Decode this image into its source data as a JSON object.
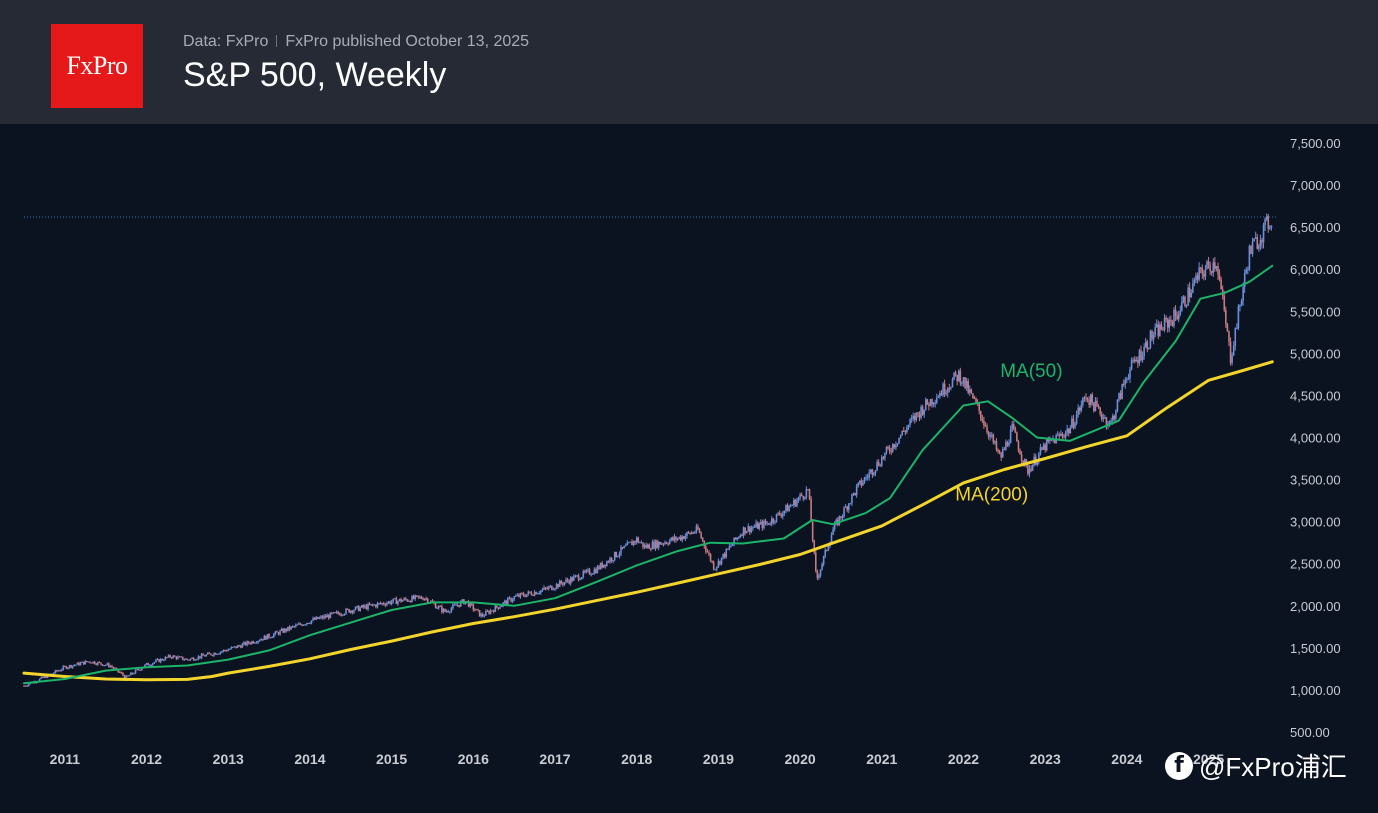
{
  "header": {
    "logo_text": "FxPro",
    "data_source": "Data: FxPro",
    "published": "FxPro published October 13, 2025",
    "title": "S&P 500, Weekly"
  },
  "watermark": {
    "icon": "facebook-icon",
    "text": "@FxPro浦汇"
  },
  "colors": {
    "background": "#0b1220",
    "header": "#262a35",
    "logo": "#e5191a",
    "ma50": "#1db46a",
    "ma200": "#f2d42c",
    "candle_up": "#6b8fd9",
    "candle_down": "#c77a80",
    "axis_text": "#c9ccd3",
    "last_price_line": "#3d6aa8"
  },
  "chart_data": {
    "type": "line",
    "title": "S&P 500, Weekly",
    "xlabel": "",
    "ylabel": "",
    "ylim": [
      500,
      7500
    ],
    "yticks": [
      500,
      1000,
      1500,
      2000,
      2500,
      3000,
      3500,
      4000,
      4500,
      5000,
      5500,
      6000,
      6500,
      7000,
      7500
    ],
    "ytick_labels": [
      "500.00",
      "1,000.00",
      "1,500.00",
      "2,000.00",
      "2,500.00",
      "3,000.00",
      "3,500.00",
      "4,000.00",
      "4,500.00",
      "5,000.00",
      "5,500.00",
      "6,000.00",
      "6,500.00",
      "7,000.00",
      "7,500.00"
    ],
    "xlim": [
      2010.5,
      2025.85
    ],
    "xticks": [
      2011,
      2012,
      2013,
      2014,
      2015,
      2016,
      2017,
      2018,
      2019,
      2020,
      2021,
      2022,
      2023,
      2024,
      2025
    ],
    "xtick_labels": [
      "2011",
      "2012",
      "2013",
      "2014",
      "2015",
      "2016",
      "2017",
      "2018",
      "2019",
      "2020",
      "2021",
      "2022",
      "2023",
      "2024",
      "2025"
    ],
    "last_price": 6620,
    "series": [
      {
        "name": "S&P 500",
        "kind": "weekly-price",
        "x": [
          2010.5,
          2010.75,
          2011.0,
          2011.3,
          2011.55,
          2011.75,
          2012.0,
          2012.3,
          2012.5,
          2012.8,
          2013.0,
          2013.5,
          2014.0,
          2014.5,
          2015.0,
          2015.4,
          2015.65,
          2015.9,
          2016.1,
          2016.5,
          2016.9,
          2017.5,
          2018.0,
          2018.1,
          2018.5,
          2018.75,
          2018.95,
          2019.3,
          2019.6,
          2019.9,
          2020.1,
          2020.2,
          2020.4,
          2020.7,
          2021.0,
          2021.5,
          2021.95,
          2022.2,
          2022.45,
          2022.6,
          2022.78,
          2023.0,
          2023.3,
          2023.5,
          2023.8,
          2024.0,
          2024.3,
          2024.6,
          2024.9,
          2025.1,
          2025.27,
          2025.5,
          2025.78
        ],
        "values": [
          1050,
          1150,
          1270,
          1340,
          1290,
          1150,
          1300,
          1400,
          1360,
          1430,
          1480,
          1640,
          1820,
          1950,
          2050,
          2100,
          1930,
          2060,
          1880,
          2100,
          2200,
          2430,
          2790,
          2700,
          2800,
          2900,
          2450,
          2900,
          2980,
          3200,
          3380,
          2300,
          2900,
          3400,
          3750,
          4350,
          4750,
          4300,
          3750,
          4100,
          3600,
          3900,
          4100,
          4500,
          4150,
          4750,
          5200,
          5450,
          5950,
          6100,
          4950,
          6200,
          6620
        ]
      },
      {
        "name": "MA(50)",
        "label": "MA(50)",
        "x": [
          2010.5,
          2011.0,
          2011.5,
          2012.0,
          2012.5,
          2013.0,
          2013.5,
          2014.0,
          2014.5,
          2015.0,
          2015.5,
          2016.0,
          2016.5,
          2017.0,
          2017.5,
          2018.0,
          2018.5,
          2018.9,
          2019.3,
          2019.8,
          2020.15,
          2020.4,
          2020.8,
          2021.1,
          2021.5,
          2022.0,
          2022.3,
          2022.6,
          2022.9,
          2023.3,
          2023.6,
          2023.9,
          2024.2,
          2024.6,
          2024.9,
          2025.2,
          2025.5,
          2025.78
        ],
        "values": [
          1080,
          1130,
          1230,
          1270,
          1290,
          1360,
          1470,
          1650,
          1800,
          1950,
          2040,
          2040,
          2000,
          2090,
          2280,
          2480,
          2650,
          2750,
          2740,
          2800,
          3020,
          2970,
          3100,
          3280,
          3850,
          4380,
          4430,
          4230,
          4000,
          3960,
          4080,
          4200,
          4650,
          5150,
          5650,
          5720,
          5850,
          6040
        ]
      },
      {
        "name": "MA(200)",
        "label": "MA(200)",
        "x": [
          2010.5,
          2011.0,
          2011.5,
          2012.0,
          2012.5,
          2012.8,
          2013.0,
          2013.5,
          2014.0,
          2014.5,
          2015.0,
          2015.5,
          2016.0,
          2016.5,
          2017.0,
          2017.5,
          2018.0,
          2018.5,
          2019.0,
          2019.5,
          2020.0,
          2020.5,
          2021.0,
          2021.5,
          2022.0,
          2022.5,
          2023.0,
          2023.5,
          2024.0,
          2024.5,
          2025.0,
          2025.4,
          2025.78
        ],
        "values": [
          1200,
          1160,
          1130,
          1120,
          1125,
          1160,
          1200,
          1280,
          1370,
          1480,
          1580,
          1690,
          1790,
          1870,
          1960,
          2060,
          2160,
          2270,
          2380,
          2490,
          2610,
          2780,
          2950,
          3200,
          3460,
          3620,
          3750,
          3890,
          4020,
          4360,
          4680,
          4790,
          4900
        ]
      }
    ]
  }
}
